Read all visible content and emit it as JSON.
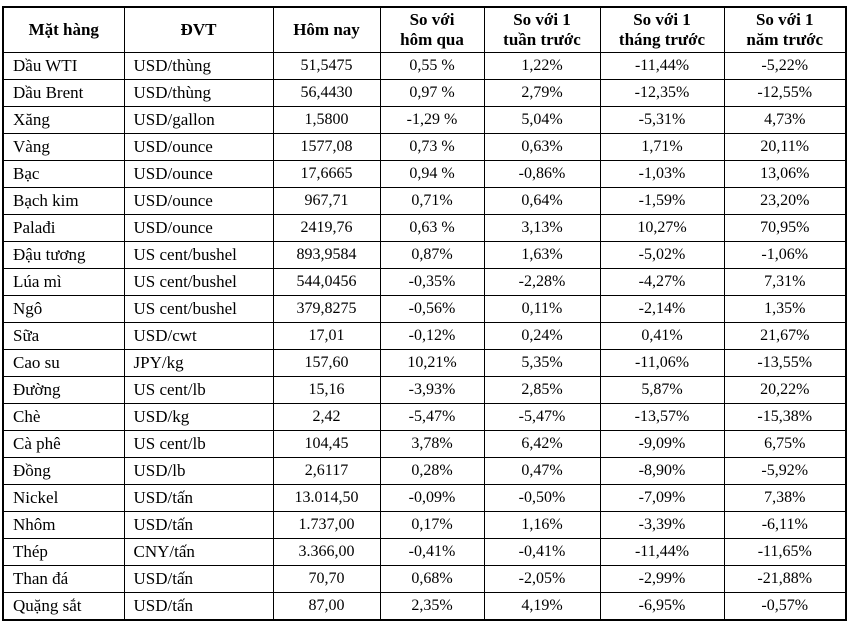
{
  "colors": {
    "border": "#000000",
    "text": "#000000",
    "background": "#ffffff"
  },
  "header_display": [
    "Mặt hàng",
    "ĐVT",
    "Hôm nay",
    "So với\nhôm qua",
    "So với 1\ntuần trước",
    "So với 1\ntháng trước",
    "So với 1\nnăm trước"
  ],
  "chart_data": {
    "type": "table",
    "title": "",
    "columns": [
      "Mặt hàng",
      "ĐVT",
      "Hôm nay",
      "So với hôm qua",
      "So với 1 tuần trước",
      "So với 1 tháng trước",
      "So với 1 năm trước"
    ],
    "rows": [
      [
        "Dầu WTI",
        "USD/thùng",
        "51,5475",
        "0,55 %",
        "1,22%",
        "-11,44%",
        "-5,22%"
      ],
      [
        "Dầu Brent",
        "USD/thùng",
        "56,4430",
        "0,97 %",
        "2,79%",
        "-12,35%",
        "-12,55%"
      ],
      [
        "Xăng",
        "USD/gallon",
        "1,5800",
        "-1,29 %",
        "5,04%",
        "-5,31%",
        "4,73%"
      ],
      [
        "Vàng",
        "USD/ounce",
        "1577,08",
        "0,73 %",
        "0,63%",
        "1,71%",
        "20,11%"
      ],
      [
        "Bạc",
        "USD/ounce",
        "17,6665",
        "0,94 %",
        "-0,86%",
        "-1,03%",
        "13,06%"
      ],
      [
        "Bạch kim",
        "USD/ounce",
        "967,71",
        "0,71%",
        "0,64%",
        "-1,59%",
        "23,20%"
      ],
      [
        "Palađi",
        "USD/ounce",
        "2419,76",
        "0,63 %",
        "3,13%",
        "10,27%",
        "70,95%"
      ],
      [
        "Đậu tương",
        "US cent/bushel",
        "893,9584",
        "0,87%",
        "1,63%",
        "-5,02%",
        "-1,06%"
      ],
      [
        "Lúa mì",
        "US cent/bushel",
        "544,0456",
        "-0,35%",
        "-2,28%",
        "-4,27%",
        "7,31%"
      ],
      [
        "Ngô",
        "US cent/bushel",
        "379,8275",
        "-0,56%",
        "0,11%",
        "-2,14%",
        "1,35%"
      ],
      [
        "Sữa",
        "USD/cwt",
        "17,01",
        "-0,12%",
        "0,24%",
        "0,41%",
        "21,67%"
      ],
      [
        "Cao su",
        "JPY/kg",
        "157,60",
        "10,21%",
        "5,35%",
        "-11,06%",
        "-13,55%"
      ],
      [
        "Đường",
        "US cent/lb",
        "15,16",
        "-3,93%",
        "2,85%",
        "5,87%",
        "20,22%"
      ],
      [
        "Chè",
        "USD/kg",
        "2,42",
        "-5,47%",
        "-5,47%",
        "-13,57%",
        "-15,38%"
      ],
      [
        "Cà phê",
        "US cent/lb",
        "104,45",
        "3,78%",
        "6,42%",
        "-9,09%",
        "6,75%"
      ],
      [
        "Đồng",
        "USD/lb",
        "2,6117",
        "0,28%",
        "0,47%",
        "-8,90%",
        "-5,92%"
      ],
      [
        "Nickel",
        "USD/tấn",
        "13.014,50",
        "-0,09%",
        "-0,50%",
        "-7,09%",
        "7,38%"
      ],
      [
        "Nhôm",
        "USD/tấn",
        "1.737,00",
        "0,17%",
        "1,16%",
        "-3,39%",
        "-6,11%"
      ],
      [
        "Thép",
        "CNY/tấn",
        "3.366,00",
        "-0,41%",
        "-0,41%",
        "-11,44%",
        "-11,65%"
      ],
      [
        "Than đá",
        "USD/tấn",
        "70,70",
        "0,68%",
        "-2,05%",
        "-2,99%",
        "-21,88%"
      ],
      [
        "Quặng sắt",
        "USD/tấn",
        "87,00",
        "2,35%",
        "4,19%",
        "-6,95%",
        "-0,57%"
      ]
    ]
  }
}
